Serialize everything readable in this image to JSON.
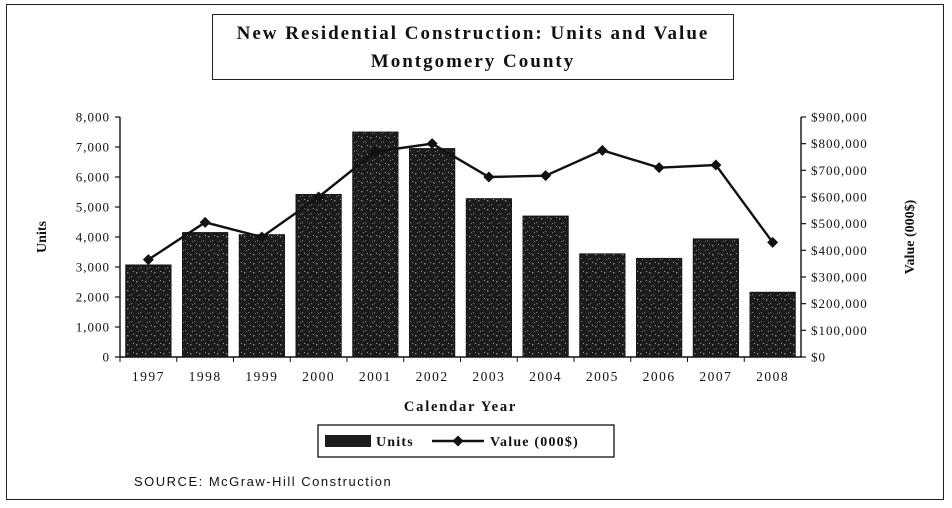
{
  "chart_data": {
    "type": "bar",
    "title_line1": "New Residential Construction:  Units and Value",
    "title_line2": "Montgomery County",
    "categories": [
      "1997",
      "1998",
      "1999",
      "2000",
      "2001",
      "2002",
      "2003",
      "2004",
      "2005",
      "2006",
      "2007",
      "2008"
    ],
    "series": [
      {
        "name": "Units",
        "kind": "bar",
        "axis": "left",
        "values": [
          3070,
          4150,
          4080,
          5420,
          7500,
          6950,
          5280,
          4700,
          3440,
          3290,
          3940,
          2160
        ]
      },
      {
        "name": "Value (000$)",
        "kind": "line",
        "axis": "right",
        "values": [
          365000,
          505000,
          450000,
          600000,
          770000,
          800000,
          675000,
          680000,
          775000,
          710000,
          720000,
          430000
        ]
      }
    ],
    "xlabel": "Calendar Year",
    "ylabel": "Units",
    "y2label": "Value (000$)",
    "ylim": [
      0,
      8000
    ],
    "y2lim": [
      0,
      900000
    ],
    "yticks": [
      "0",
      "1,000",
      "2,000",
      "3,000",
      "4,000",
      "5,000",
      "6,000",
      "7,000",
      "8,000"
    ],
    "y2ticks": [
      "$0",
      "$100,000",
      "$200,000",
      "$300,000",
      "$400,000",
      "$500,000",
      "$600,000",
      "$700,000",
      "$800,000",
      "$900,000"
    ],
    "legend": {
      "position": "bottom",
      "units_label": "Units",
      "value_label": "Value (000$)"
    },
    "source": "SOURCE:  McGraw-Hill Construction",
    "colors": {
      "bar": "#1c1c1c",
      "line": "#111111",
      "text": "#111111"
    }
  }
}
